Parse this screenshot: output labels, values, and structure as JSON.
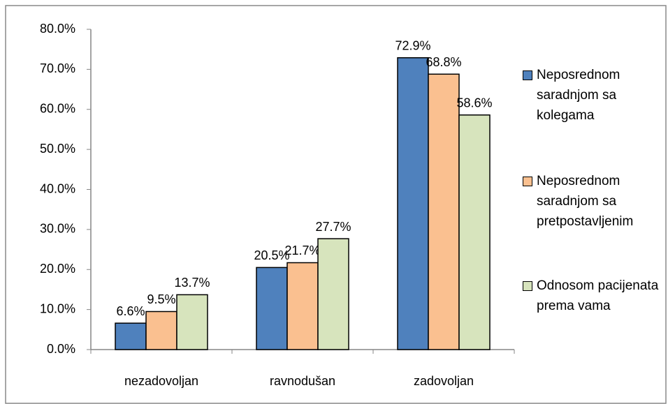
{
  "chart_data": {
    "type": "bar",
    "categories": [
      "nezadovoljan",
      "ravnodušan",
      "zadovoljan"
    ],
    "series": [
      {
        "name": "Neposrednom saradnjom sa kolegama",
        "color": "#4f81bd",
        "values": [
          6.6,
          20.5,
          72.9
        ],
        "value_labels": [
          "6.6%",
          "20.5%",
          "72.9%"
        ]
      },
      {
        "name": "Neposrednom saradnjom sa pretpostavljenim",
        "color": "#fac090",
        "values": [
          9.5,
          21.7,
          68.8
        ],
        "value_labels": [
          "9.5%",
          "21.7%",
          "68.8%"
        ]
      },
      {
        "name": "Odnosom pacijenata prema vama",
        "color": "#d7e4bd",
        "values": [
          13.7,
          27.7,
          58.6
        ],
        "value_labels": [
          "13.7%",
          "27.7%",
          "58.6%"
        ]
      }
    ],
    "ylim": [
      0,
      80
    ],
    "yticks": [
      {
        "value": 0,
        "label": "0.0%"
      },
      {
        "value": 10,
        "label": "10.0%"
      },
      {
        "value": 20,
        "label": "20.0%"
      },
      {
        "value": 30,
        "label": "30.0%"
      },
      {
        "value": 40,
        "label": "40.0%"
      },
      {
        "value": 50,
        "label": "50.0%"
      },
      {
        "value": 60,
        "label": "60.0%"
      },
      {
        "value": 70,
        "label": "70.0%"
      },
      {
        "value": 80,
        "label": "80.0%"
      }
    ],
    "grid": false,
    "legend": "right"
  }
}
